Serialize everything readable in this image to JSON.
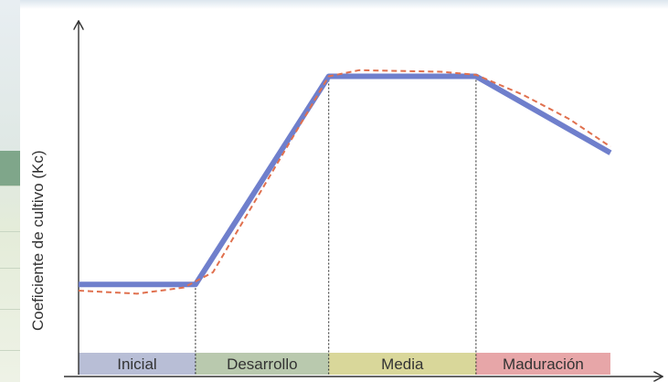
{
  "chart_data": {
    "type": "line",
    "ylabel": "Coeficiente de cultivo (Kc)",
    "xlabel": "",
    "phases": [
      {
        "label": "Inicial",
        "color": "#b8bed6"
      },
      {
        "label": "Desarrollo",
        "color": "#b9c9ae"
      },
      {
        "label": "Media",
        "color": "#d9d79a"
      },
      {
        "label": "Maduración",
        "color": "#e7a6a8"
      }
    ],
    "phase_bounds": [
      0,
      1,
      2.14,
      3.4,
      4.55
    ],
    "x_range": [
      0,
      4.55
    ],
    "y_range": [
      0,
      1.0
    ],
    "series": [
      {
        "style": "solid",
        "color": "#6f7fcc",
        "points": [
          [
            0,
            0.22
          ],
          [
            1,
            0.22
          ],
          [
            2.14,
            0.9
          ],
          [
            3.4,
            0.9
          ],
          [
            4.55,
            0.65
          ]
        ]
      },
      {
        "style": "dashed",
        "color": "#e0704e",
        "points": [
          [
            0,
            0.2
          ],
          [
            0.5,
            0.19
          ],
          [
            0.9,
            0.21
          ],
          [
            1.15,
            0.26
          ],
          [
            2.14,
            0.9
          ],
          [
            2.4,
            0.92
          ],
          [
            3.1,
            0.915
          ],
          [
            3.4,
            0.905
          ],
          [
            3.8,
            0.84
          ],
          [
            4.2,
            0.76
          ],
          [
            4.55,
            0.67
          ]
        ]
      }
    ]
  }
}
